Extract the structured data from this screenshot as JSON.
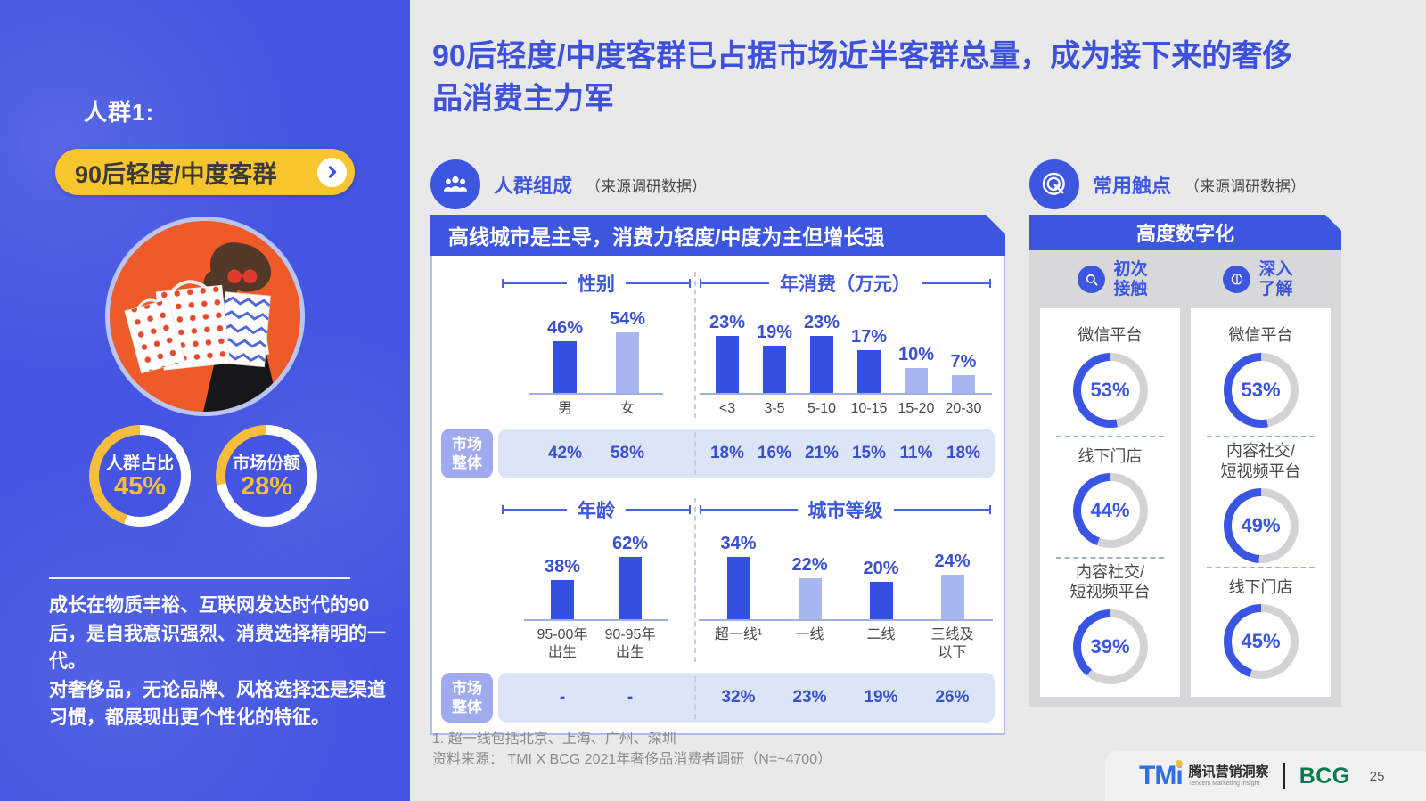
{
  "sidebar": {
    "group_label": "人群1:",
    "pill_label": "90后轻度/中度客群",
    "description": [
      "成长在物质丰裕、互联网发达时代的90后，是自我意识强烈、消费选择精明的一代。",
      "对奢侈品，无论品牌、风格选择还是渠道习惯，都展现出更个性化的特征。"
    ]
  },
  "title": "90后轻度/中度客群已占据市场近半客群总量，成为接下来的奢侈品消费主力军",
  "composition": {
    "section_title": "人群组成",
    "source_note": "（来源调研数据）",
    "panel_title": "高线城市是主导，消费力轻度/中度为主但增长强",
    "market_label": "市场\n整体"
  },
  "touchpoints": {
    "section_title": "常用触点",
    "source_note": "（来源调研数据）",
    "panel_title": "高度数字化",
    "columns": [
      {
        "header": "初次\n接触",
        "icon": "magnifier-icon"
      },
      {
        "header": "深入\n了解",
        "icon": "brain-icon"
      }
    ]
  },
  "chart_data": {
    "charts": [
      {
        "id": "gender",
        "type": "bar",
        "title": "性别",
        "unit": "%",
        "categories": [
          "男",
          "女"
        ],
        "values": [
          46,
          54
        ],
        "emphasis": [
          "dark",
          "light"
        ],
        "market_overall": [
          "42%",
          "58%"
        ]
      },
      {
        "id": "annual_spend",
        "type": "bar",
        "title": "年消费（万元）",
        "unit": "%",
        "categories": [
          "<3",
          "3-5",
          "5-10",
          "10-15",
          "15-20",
          "20-30"
        ],
        "values": [
          23,
          19,
          23,
          17,
          10,
          7
        ],
        "emphasis": [
          "dark",
          "dark",
          "dark",
          "dark",
          "light",
          "light"
        ],
        "market_overall": [
          "18%",
          "16%",
          "21%",
          "15%",
          "11%",
          "18%"
        ]
      },
      {
        "id": "age",
        "type": "bar",
        "title": "年龄",
        "unit": "%",
        "categories": [
          "95-00年\n出生",
          "90-95年\n出生"
        ],
        "values": [
          38,
          62
        ],
        "emphasis": [
          "dark",
          "dark"
        ],
        "market_overall": [
          "-",
          "-"
        ]
      },
      {
        "id": "city_tier",
        "type": "bar",
        "title": "城市等级",
        "unit": "%",
        "categories": [
          "超一线¹",
          "一线",
          "二线",
          "三线及\n以下"
        ],
        "values": [
          34,
          22,
          20,
          24
        ],
        "emphasis": [
          "dark",
          "light",
          "dark",
          "light"
        ],
        "market_overall": [
          "32%",
          "23%",
          "19%",
          "26%"
        ]
      }
    ],
    "touchpoint_donuts": {
      "type": "donut",
      "unit": "%",
      "columns": [
        {
          "header": "初次接触",
          "items": [
            {
              "label": "微信平台",
              "value": 53
            },
            {
              "label": "线下门店",
              "value": 44
            },
            {
              "label": "内容社交/\n短视频平台",
              "value": 39
            }
          ]
        },
        {
          "header": "深入了解",
          "items": [
            {
              "label": "微信平台",
              "value": 53
            },
            {
              "label": "内容社交/\n短视频平台",
              "value": 49
            },
            {
              "label": "线下门店",
              "value": 45
            }
          ]
        }
      ]
    },
    "sidebar_donuts": {
      "type": "donut",
      "unit": "%",
      "items": [
        {
          "label": "人群占比",
          "value": 45
        },
        {
          "label": "市场份额",
          "value": 28
        }
      ]
    }
  },
  "footnotes": [
    "1. 超一线包括北京、上海、广州、深圳",
    "资料来源： TMI X BCG 2021年奢侈品消费者调研（N=~4700）"
  ],
  "footer": {
    "tmi_tm": "TM",
    "tmi_i": "i",
    "tmi_cn": "腾讯营销洞察",
    "tmi_en": "Tencent Marketing Insight",
    "bcg": "BCG",
    "page_number": "25"
  },
  "colors": {
    "sidebar_blue": "#4355E2",
    "accent_blue": "#3D56E0",
    "bar_dark": "#3351DE",
    "bar_light": "#A9B7F1",
    "accent_yellow": "#F6BD3D",
    "market_row_bg": "#DBE5F5",
    "donut_gray": "#D3D3D6",
    "bcg_green": "#0B7A4D",
    "pill_yellow": "#F7C52D"
  }
}
